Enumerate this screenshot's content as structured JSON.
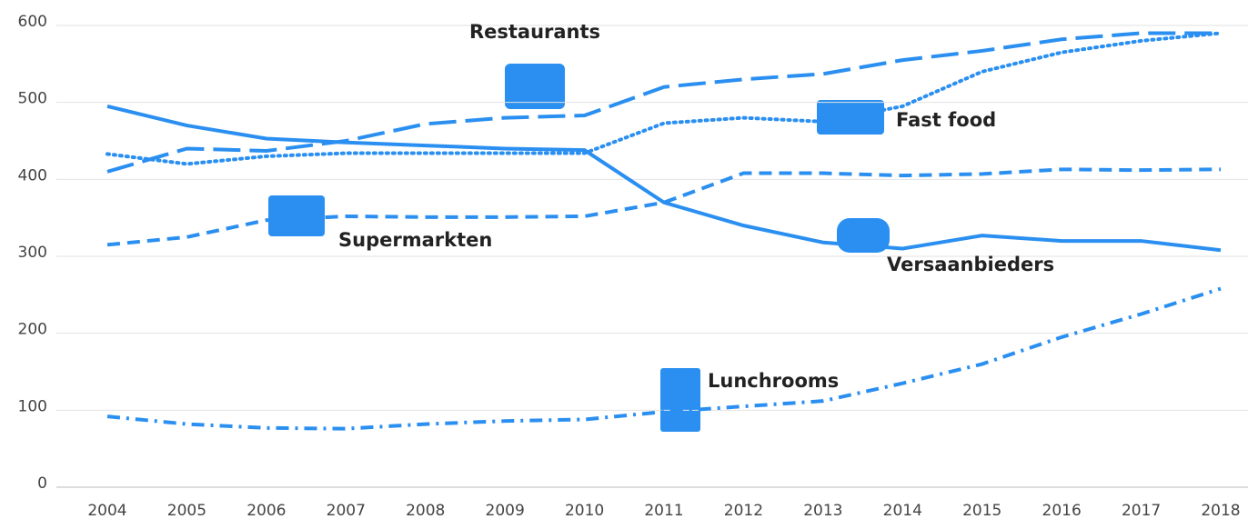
{
  "chart_data": {
    "type": "line",
    "categories": [
      "2004",
      "2005",
      "2006",
      "2007",
      "2008",
      "2009",
      "2010",
      "2011",
      "2012",
      "2013",
      "2014",
      "2015",
      "2016",
      "2017",
      "2018"
    ],
    "ylim": [
      0,
      600
    ],
    "yticks": [
      0,
      100,
      200,
      300,
      400,
      500,
      600
    ],
    "grid": true,
    "series": [
      {
        "name": "Restaurants",
        "color": "#2a8ff0",
        "dash": "longdash",
        "values": [
          410,
          440,
          437,
          450,
          472,
          480,
          483,
          520,
          530,
          537,
          555,
          567,
          582,
          590,
          590
        ]
      },
      {
        "name": "Fast food",
        "color": "#2a8ff0",
        "dash": "dotted",
        "values": [
          433,
          420,
          430,
          434,
          434,
          434,
          434,
          473,
          480,
          475,
          495,
          540,
          565,
          580,
          590
        ]
      },
      {
        "name": "Supermarkten",
        "color": "#2a8ff0",
        "dash": "dashed",
        "values": [
          315,
          325,
          347,
          352,
          351,
          351,
          352,
          370,
          408,
          408,
          405,
          407,
          413,
          412,
          413
        ]
      },
      {
        "name": "Versaanbieders",
        "color": "#2a8ff0",
        "dash": "solid",
        "values": [
          495,
          470,
          453,
          448,
          444,
          440,
          438,
          370,
          340,
          318,
          310,
          327,
          320,
          320,
          308
        ]
      },
      {
        "name": "Lunchrooms",
        "color": "#2a8ff0",
        "dash": "dashdot",
        "values": [
          92,
          82,
          77,
          76,
          82,
          86,
          88,
          98,
          105,
          112,
          135,
          160,
          195,
          225,
          258
        ]
      }
    ]
  }
}
